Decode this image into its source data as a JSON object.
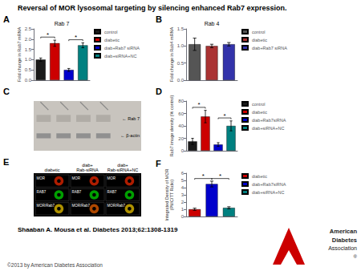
{
  "title": "Reversal of MOR lysosomal targeting by silencing enhanced Rab7 expression.",
  "annotations": [
    "Shaaban A. Mousa et al. Diabetes 2013;62:1308-1319",
    "©2013 by American Diabetes Association",
    "American",
    "Diabetes",
    "Association",
    "®"
  ],
  "chart_data": [
    {
      "type": "bar",
      "title": "A",
      "subtitle": "Rab 7",
      "categories": [
        "control",
        "diabetic",
        "diab+Rab7 siRNA",
        "diab+siRNA+NC"
      ],
      "values": [
        1.0,
        1.8,
        0.5,
        1.7
      ],
      "errors": [
        0.08,
        0.15,
        0.07,
        0.12
      ],
      "colors": [
        "#1a1a1a",
        "#cc0000",
        "#0000cc",
        "#008080"
      ],
      "ylabel": "Fold change in Rab7 mRNA",
      "ylim": [
        0,
        2.5
      ],
      "yticks": [
        {
          "value": 0,
          "label": "0.0"
        },
        0.5,
        {
          "value": 1,
          "label": "1.0"
        },
        1.5,
        {
          "value": 2,
          "label": "2.0"
        },
        2.5
      ],
      "annotations": [
        {
          "text": "*",
          "between": [
            0,
            1
          ]
        },
        {
          "text": "*",
          "between": [
            2,
            3
          ]
        }
      ],
      "legend": "right",
      "tick_labels": "y",
      "grid": false
    },
    {
      "type": "bar",
      "title": "B",
      "subtitle": "Rab 4",
      "categories": [
        "control",
        "diabetic",
        "diab+Rab7 siRNA"
      ],
      "values": [
        1.05,
        1.0,
        1.05
      ],
      "errors": [
        0.18,
        0.05,
        0.05
      ],
      "colors": [
        "#555555",
        "#aa3333",
        "#3333aa"
      ],
      "ylabel": "Fold change in Rab4 mRNA",
      "ylim": [
        0,
        1.5
      ],
      "yticks": [
        {
          "value": 0,
          "label": "0.0"
        },
        0.5,
        {
          "value": 1,
          "label": "1.0"
        },
        1.5
      ],
      "legend": "right",
      "tick_labels": "y",
      "grid": false
    },
    {
      "type": "blot",
      "title": "C",
      "annotations": [
        "← Rab 7",
        "← β-actin"
      ]
    },
    {
      "type": "bar",
      "title": "D",
      "categories": [
        "control",
        "diabetic",
        "diab+Rab7siRNA",
        "diab+siRNA+NC"
      ],
      "values": [
        15,
        55,
        10,
        40
      ],
      "errors": [
        5,
        10,
        3,
        8
      ],
      "colors": [
        "#1a1a1a",
        "#cc0000",
        "#0000cc",
        "#008080"
      ],
      "ylabel": "Rab7 image density (% control)",
      "ylim": [
        0,
        80
      ],
      "yticks": [
        0,
        20,
        40,
        60,
        80
      ],
      "annotations": [
        {
          "text": "*",
          "between": [
            0,
            1
          ]
        },
        {
          "text": "*",
          "between": [
            2,
            3
          ]
        }
      ],
      "legend": "right",
      "tick_labels": "y",
      "grid": false
    },
    {
      "type": "micrograph",
      "title": "E",
      "categories": [
        "diabetic",
        "diab+\nRab-siRNA",
        "diab+\nRab-siRNA+NC"
      ],
      "rows": [
        "MOR",
        "RAB7",
        "MOR/Rab7"
      ],
      "colors": [
        [
          "#cc2200",
          "#cc2200",
          "#cc2200"
        ],
        [
          "#00bb00",
          "#00bb00",
          "#00bb00"
        ],
        [
          "#ccaa00",
          "#cc5500",
          "#ccaa00"
        ]
      ]
    },
    {
      "type": "bar",
      "title": "F",
      "categories": [
        "diabetic",
        "diab+Rab7siRNA",
        "diab+siRNA+NC"
      ],
      "values": [
        1.0,
        4.5,
        1.2
      ],
      "errors": [
        0.15,
        0.4,
        0.15
      ],
      "colors": [
        "#cc0000",
        "#0000cc",
        "#008080"
      ],
      "ylabel": "Integrated Density of MOR\n(PMC/TT Ratio)",
      "ylim": [
        0,
        6
      ],
      "yticks": [
        0,
        1,
        2,
        3,
        4,
        5,
        6
      ],
      "annotations": [
        {
          "text": "*",
          "between": [
            0,
            1
          ]
        },
        {
          "text": "*",
          "between": [
            1,
            2
          ]
        }
      ],
      "legend": "right",
      "tick_labels": "y",
      "grid": false
    }
  ]
}
